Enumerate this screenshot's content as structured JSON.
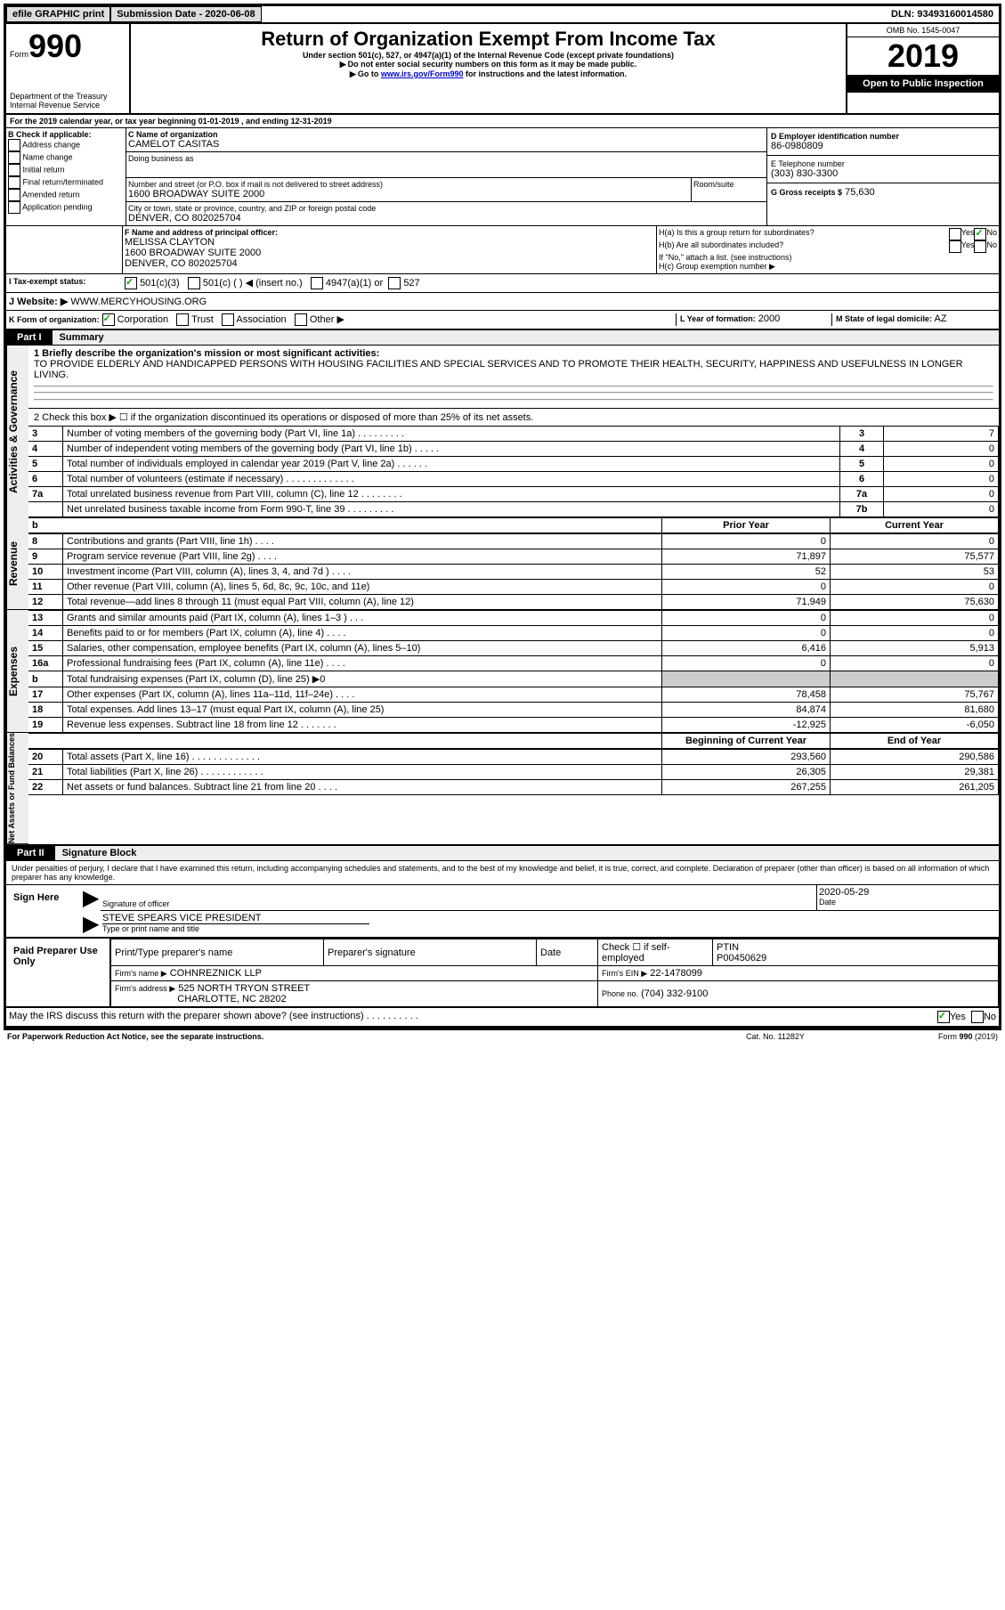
{
  "top_bar": {
    "efile_label": "efile GRAPHIC print",
    "submission_label": "Submission Date - 2020-06-08",
    "dln_label": "DLN: 93493160014580"
  },
  "header": {
    "form_label": "Form",
    "form_number": "990",
    "dept": "Department of the Treasury",
    "irs": "Internal Revenue Service",
    "title": "Return of Organization Exempt From Income Tax",
    "subtitle": "Under section 501(c), 527, or 4947(a)(1) of the Internal Revenue Code (except private foundations)",
    "note1": "Do not enter social security numbers on this form as it may be made public.",
    "note2_prefix": "Go to ",
    "note2_link": "www.irs.gov/Form990",
    "note2_suffix": " for instructions and the latest information.",
    "omb": "OMB No. 1545-0047",
    "year": "2019",
    "open_public": "Open to Public Inspection"
  },
  "period": {
    "line": "For the 2019 calendar year, or tax year beginning 01-01-2019   , and ending 12-31-2019"
  },
  "box_b": {
    "label": "B Check if applicable:",
    "items": [
      "Address change",
      "Name change",
      "Initial return",
      "Final return/terminated",
      "Amended return",
      "Application pending"
    ]
  },
  "box_c": {
    "label": "C Name of organization",
    "name": "CAMELOT CASITAS",
    "dba_label": "Doing business as",
    "addr_label": "Number and street (or P.O. box if mail is not delivered to street address)",
    "room_label": "Room/suite",
    "addr": "1600 BROADWAY SUITE 2000",
    "city_label": "City or town, state or province, country, and ZIP or foreign postal code",
    "city": "DENVER, CO  802025704"
  },
  "box_d": {
    "label": "D Employer identification number",
    "value": "86-0980809"
  },
  "box_e": {
    "label": "E Telephone number",
    "value": "(303) 830-3300"
  },
  "box_g": {
    "label": "G Gross receipts $",
    "value": "75,630"
  },
  "box_f": {
    "label": "F  Name and address of principal officer:",
    "name": "MELISSA CLAYTON",
    "line1": "1600 BROADWAY SUITE 2000",
    "line2": "DENVER, CO  802025704"
  },
  "box_h": {
    "ha": "H(a)  Is this a group return for subordinates?",
    "hb": "H(b)  Are all subordinates included?",
    "hb_note": "If \"No,\" attach a list. (see instructions)",
    "hc": "H(c)  Group exemption number ▶",
    "yes": "Yes",
    "no": "No"
  },
  "box_i": {
    "label": "I  Tax-exempt status:",
    "opts": [
      "501(c)(3)",
      "501(c) (  ) ◀ (insert no.)",
      "4947(a)(1) or",
      "527"
    ]
  },
  "box_j": {
    "label": "J   Website: ▶",
    "value": "WWW.MERCYHOUSING.ORG"
  },
  "box_k": {
    "label": "K Form of organization:",
    "opts": [
      "Corporation",
      "Trust",
      "Association",
      "Other ▶"
    ]
  },
  "box_l": {
    "label": "L Year of formation:",
    "value": "2000"
  },
  "box_m": {
    "label": "M State of legal domicile:",
    "value": "AZ"
  },
  "part1": {
    "label": "Part I",
    "title": "Summary",
    "line1_label": "1  Briefly describe the organization's mission or most significant activities:",
    "line1_text": "TO PROVIDE ELDERLY AND HANDICAPPED PERSONS WITH HOUSING FACILITIES AND SPECIAL SERVICES AND TO PROMOTE THEIR HEALTH, SECURITY, HAPPINESS AND USEFULNESS IN LONGER LIVING.",
    "line2": "2   Check this box ▶ ☐  if the organization discontinued its operations or disposed of more than 25% of its net assets.",
    "tab_activities": "Activities & Governance",
    "tab_revenue": "Revenue",
    "tab_expenses": "Expenses",
    "tab_net": "Net Assets or Fund Balances",
    "rows_ag": [
      {
        "n": "3",
        "t": "Number of voting members of the governing body (Part VI, line 1a)  .   .   .   .   .   .   .   .   .",
        "box": "3",
        "v": "7"
      },
      {
        "n": "4",
        "t": "Number of independent voting members of the governing body (Part VI, line 1b)  .   .   .   .   .",
        "box": "4",
        "v": "0"
      },
      {
        "n": "5",
        "t": "Total number of individuals employed in calendar year 2019 (Part V, line 2a)  .   .   .   .   .   .",
        "box": "5",
        "v": "0"
      },
      {
        "n": "6",
        "t": "Total number of volunteers (estimate if necessary)   .   .   .   .   .   .   .   .   .   .   .   .   .",
        "box": "6",
        "v": "0"
      },
      {
        "n": "7a",
        "t": "Total unrelated business revenue from Part VIII, column (C), line 12  .   .   .   .   .   .   .   .",
        "box": "7a",
        "v": "0"
      },
      {
        "n": "",
        "t": "Net unrelated business taxable income from Form 990-T, line 39   .   .   .   .   .   .   .   .   .",
        "box": "7b",
        "v": "0"
      }
    ],
    "col_prior": "Prior Year",
    "col_current": "Current Year",
    "rows_rev": [
      {
        "n": "8",
        "t": "Contributions and grants (Part VIII, line 1h)   .   .   .   .",
        "p": "0",
        "c": "0"
      },
      {
        "n": "9",
        "t": "Program service revenue (Part VIII, line 2g)   .   .   .   .",
        "p": "71,897",
        "c": "75,577"
      },
      {
        "n": "10",
        "t": "Investment income (Part VIII, column (A), lines 3, 4, and 7d )   .   .   .   .",
        "p": "52",
        "c": "53"
      },
      {
        "n": "11",
        "t": "Other revenue (Part VIII, column (A), lines 5, 6d, 8c, 9c, 10c, and 11e)",
        "p": "0",
        "c": "0"
      },
      {
        "n": "12",
        "t": "Total revenue—add lines 8 through 11 (must equal Part VIII, column (A), line 12)",
        "p": "71,949",
        "c": "75,630"
      }
    ],
    "rows_exp": [
      {
        "n": "13",
        "t": "Grants and similar amounts paid (Part IX, column (A), lines 1–3 )   .   .   .",
        "p": "0",
        "c": "0"
      },
      {
        "n": "14",
        "t": "Benefits paid to or for members (Part IX, column (A), line 4)   .   .   .   .",
        "p": "0",
        "c": "0"
      },
      {
        "n": "15",
        "t": "Salaries, other compensation, employee benefits (Part IX, column (A), lines 5–10)",
        "p": "6,416",
        "c": "5,913"
      },
      {
        "n": "16a",
        "t": "Professional fundraising fees (Part IX, column (A), line 11e)   .   .   .   .",
        "p": "0",
        "c": "0"
      },
      {
        "n": "b",
        "t": "Total fundraising expenses (Part IX, column (D), line 25) ▶0",
        "p": "",
        "c": "",
        "shade": true
      },
      {
        "n": "17",
        "t": "Other expenses (Part IX, column (A), lines 11a–11d, 11f–24e)   .   .   .   .",
        "p": "78,458",
        "c": "75,767"
      },
      {
        "n": "18",
        "t": "Total expenses. Add lines 13–17 (must equal Part IX, column (A), line 25)",
        "p": "84,874",
        "c": "81,680"
      },
      {
        "n": "19",
        "t": "Revenue less expenses. Subtract line 18 from line 12  .   .   .   .   .   .   .",
        "p": "-12,925",
        "c": "-6,050"
      }
    ],
    "col_begin": "Beginning of Current Year",
    "col_end": "End of Year",
    "rows_net": [
      {
        "n": "20",
        "t": "Total assets (Part X, line 16)  .   .   .   .   .   .   .   .   .   .   .   .   .",
        "p": "293,560",
        "c": "290,586"
      },
      {
        "n": "21",
        "t": "Total liabilities (Part X, line 26)  .   .   .   .   .   .   .   .   .   .   .   .",
        "p": "26,305",
        "c": "29,381"
      },
      {
        "n": "22",
        "t": "Net assets or fund balances. Subtract line 21 from line 20   .   .   .   .",
        "p": "267,255",
        "c": "261,205"
      }
    ]
  },
  "part2": {
    "label": "Part II",
    "title": "Signature Block",
    "declaration": "Under penalties of perjury, I declare that I have examined this return, including accompanying schedules and statements, and to the best of my knowledge and belief, it is true, correct, and complete. Declaration of preparer (other than officer) is based on all information of which preparer has any knowledge.",
    "sign_here": "Sign Here",
    "sig_officer": "Signature of officer",
    "date_label": "Date",
    "date_val": "2020-05-29",
    "officer_name": "STEVE SPEARS VICE PRESIDENT",
    "type_name": "Type or print name and title",
    "paid_prep": "Paid Preparer Use Only",
    "prep_name_label": "Print/Type preparer's name",
    "prep_sig_label": "Preparer's signature",
    "prep_date": "Date",
    "check_self": "Check ☐ if self-employed",
    "ptin_label": "PTIN",
    "ptin": "P00450629",
    "firm_name_label": "Firm's name    ▶",
    "firm_name": "COHNREZNICK LLP",
    "firm_ein_label": "Firm's EIN ▶",
    "firm_ein": "22-1478099",
    "firm_addr_label": "Firm's address ▶",
    "firm_addr1": "525 NORTH TRYON STREET",
    "firm_addr2": "CHARLOTTE, NC  28202",
    "phone_label": "Phone no.",
    "phone": "(704) 332-9100",
    "discuss": "May the IRS discuss this return with the preparer shown above? (see instructions)   .   .   .   .   .   .   .   .   .   .",
    "yes": "Yes",
    "no": "No"
  },
  "footer": {
    "paperwork": "For Paperwork Reduction Act Notice, see the separate instructions.",
    "cat": "Cat. No. 11282Y",
    "form": "Form 990 (2019)"
  }
}
